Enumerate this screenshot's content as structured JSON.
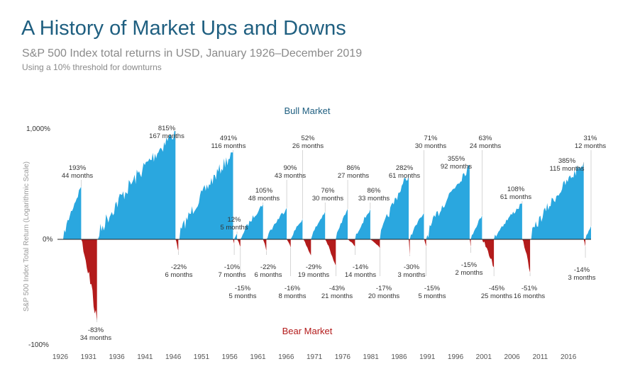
{
  "header": {
    "title": "A History of Market Ups and Downs",
    "subtitle": "S&P 500 Index total returns in USD, January 1926–December 2019",
    "note": "Using a 10% threshold for downturns"
  },
  "chart_data": {
    "type": "area",
    "title": "A History of Market Ups and Downs",
    "subtitle": "S&P 500 Index total returns in USD, January 1926–December 2019",
    "note": "Using a 10% threshold for downturns",
    "ylabel": "S&P 500 Index Total Return (Logarithmic Scale)",
    "y_scale": "log",
    "yticks": [
      "1,000%",
      "0%",
      "-100%"
    ],
    "xticks": [
      "1926",
      "1931",
      "1936",
      "1941",
      "1946",
      "1951",
      "1956",
      "1961",
      "1966",
      "1971",
      "1976",
      "1981",
      "1986",
      "1991",
      "1996",
      "2001",
      "2006",
      "2011",
      "2016"
    ],
    "xlim": [
      1926,
      2020
    ],
    "labels": {
      "bull": "Bull Market",
      "bear": "Bear Market"
    },
    "colors": {
      "bull": "#2aa7df",
      "bear": "#b31b1b"
    },
    "bull_markets": [
      {
        "start": 1926.5,
        "end": 1929.7,
        "return_pct": 193,
        "months": 44,
        "label": "193%",
        "duration": "44 months"
      },
      {
        "start": 1932.5,
        "end": 1946.4,
        "return_pct": 815,
        "months": 167,
        "label": "815%",
        "duration": "167 months"
      },
      {
        "start": 1946.9,
        "end": 1956.6,
        "return_pct": 491,
        "months": 116,
        "label": "491%",
        "duration": "116 months"
      },
      {
        "start": 1956.8,
        "end": 1957.3,
        "return_pct": 12,
        "months": 5,
        "label": "12%",
        "duration": "5 months"
      },
      {
        "start": 1957.9,
        "end": 1961.9,
        "return_pct": 105,
        "months": 48,
        "label": "105%",
        "duration": "48 months"
      },
      {
        "start": 1962.5,
        "end": 1966.1,
        "return_pct": 90,
        "months": 43,
        "label": "90%",
        "duration": "43 months"
      },
      {
        "start": 1966.8,
        "end": 1968.9,
        "return_pct": 52,
        "months": 26,
        "label": "52%",
        "duration": "26 months"
      },
      {
        "start": 1970.4,
        "end": 1972.9,
        "return_pct": 76,
        "months": 30,
        "label": "76%",
        "duration": "30 months"
      },
      {
        "start": 1974.8,
        "end": 1976.9,
        "return_pct": 86,
        "months": 27,
        "label": "86%",
        "duration": "27 months"
      },
      {
        "start": 1978.2,
        "end": 1980.9,
        "return_pct": 86,
        "months": 33,
        "label": "86%",
        "duration": "33 months"
      },
      {
        "start": 1982.6,
        "end": 1987.7,
        "return_pct": 282,
        "months": 61,
        "label": "282%",
        "duration": "61 months"
      },
      {
        "start": 1987.9,
        "end": 1990.4,
        "return_pct": 71,
        "months": 30,
        "label": "71%",
        "duration": "30 months"
      },
      {
        "start": 1990.8,
        "end": 1998.5,
        "return_pct": 355,
        "months": 92,
        "label": "355%",
        "duration": "92 months"
      },
      {
        "start": 1998.7,
        "end": 2000.7,
        "return_pct": 63,
        "months": 24,
        "label": "63%",
        "duration": "24 months"
      },
      {
        "start": 2002.8,
        "end": 2007.8,
        "return_pct": 108,
        "months": 61,
        "label": "108%",
        "duration": "61 months"
      },
      {
        "start": 2009.2,
        "end": 2018.7,
        "return_pct": 385,
        "months": 115,
        "label": "385%",
        "duration": "115 months"
      },
      {
        "start": 2019.0,
        "end": 2020.0,
        "return_pct": 31,
        "months": 12,
        "label": "31%",
        "duration": "12 months"
      }
    ],
    "bear_markets": [
      {
        "start": 1929.7,
        "end": 1932.5,
        "return_pct": -83,
        "months": 34,
        "label": "-83%",
        "duration": "34 months"
      },
      {
        "start": 1946.4,
        "end": 1946.9,
        "return_pct": -22,
        "months": 6,
        "label": "-22%",
        "duration": "6 months"
      },
      {
        "start": 1956.6,
        "end": 1956.8,
        "return_pct": -10,
        "months": 7,
        "label": "-10%",
        "duration": "7 months"
      },
      {
        "start": 1957.3,
        "end": 1957.9,
        "return_pct": -15,
        "months": 5,
        "label": "-15%",
        "duration": "5 months"
      },
      {
        "start": 1961.9,
        "end": 1962.5,
        "return_pct": -22,
        "months": 6,
        "label": "-22%",
        "duration": "6 months"
      },
      {
        "start": 1966.1,
        "end": 1966.8,
        "return_pct": -16,
        "months": 8,
        "label": "-16%",
        "duration": "8 months"
      },
      {
        "start": 1968.9,
        "end": 1970.4,
        "return_pct": -29,
        "months": 19,
        "label": "-29%",
        "duration": "19 months"
      },
      {
        "start": 1972.9,
        "end": 1974.8,
        "return_pct": -43,
        "months": 21,
        "label": "-43%",
        "duration": "21 months"
      },
      {
        "start": 1976.9,
        "end": 1978.2,
        "return_pct": -14,
        "months": 14,
        "label": "-14%",
        "duration": "14 months"
      },
      {
        "start": 1980.9,
        "end": 1982.6,
        "return_pct": -17,
        "months": 20,
        "label": "-17%",
        "duration": "20 months"
      },
      {
        "start": 1987.7,
        "end": 1987.9,
        "return_pct": -30,
        "months": 3,
        "label": "-30%",
        "duration": "3 months"
      },
      {
        "start": 1990.4,
        "end": 1990.8,
        "return_pct": -15,
        "months": 5,
        "label": "-15%",
        "duration": "5 months"
      },
      {
        "start": 1998.5,
        "end": 1998.7,
        "return_pct": -15,
        "months": 2,
        "label": "-15%",
        "duration": "2 months"
      },
      {
        "start": 2000.7,
        "end": 2002.8,
        "return_pct": -45,
        "months": 25,
        "label": "-45%",
        "duration": "25 months"
      },
      {
        "start": 2007.8,
        "end": 2009.2,
        "return_pct": -51,
        "months": 16,
        "label": "-51%",
        "duration": "16 months"
      },
      {
        "start": 2018.7,
        "end": 2019.0,
        "return_pct": -14,
        "months": 3,
        "label": "-14%",
        "duration": "3 months"
      }
    ]
  }
}
